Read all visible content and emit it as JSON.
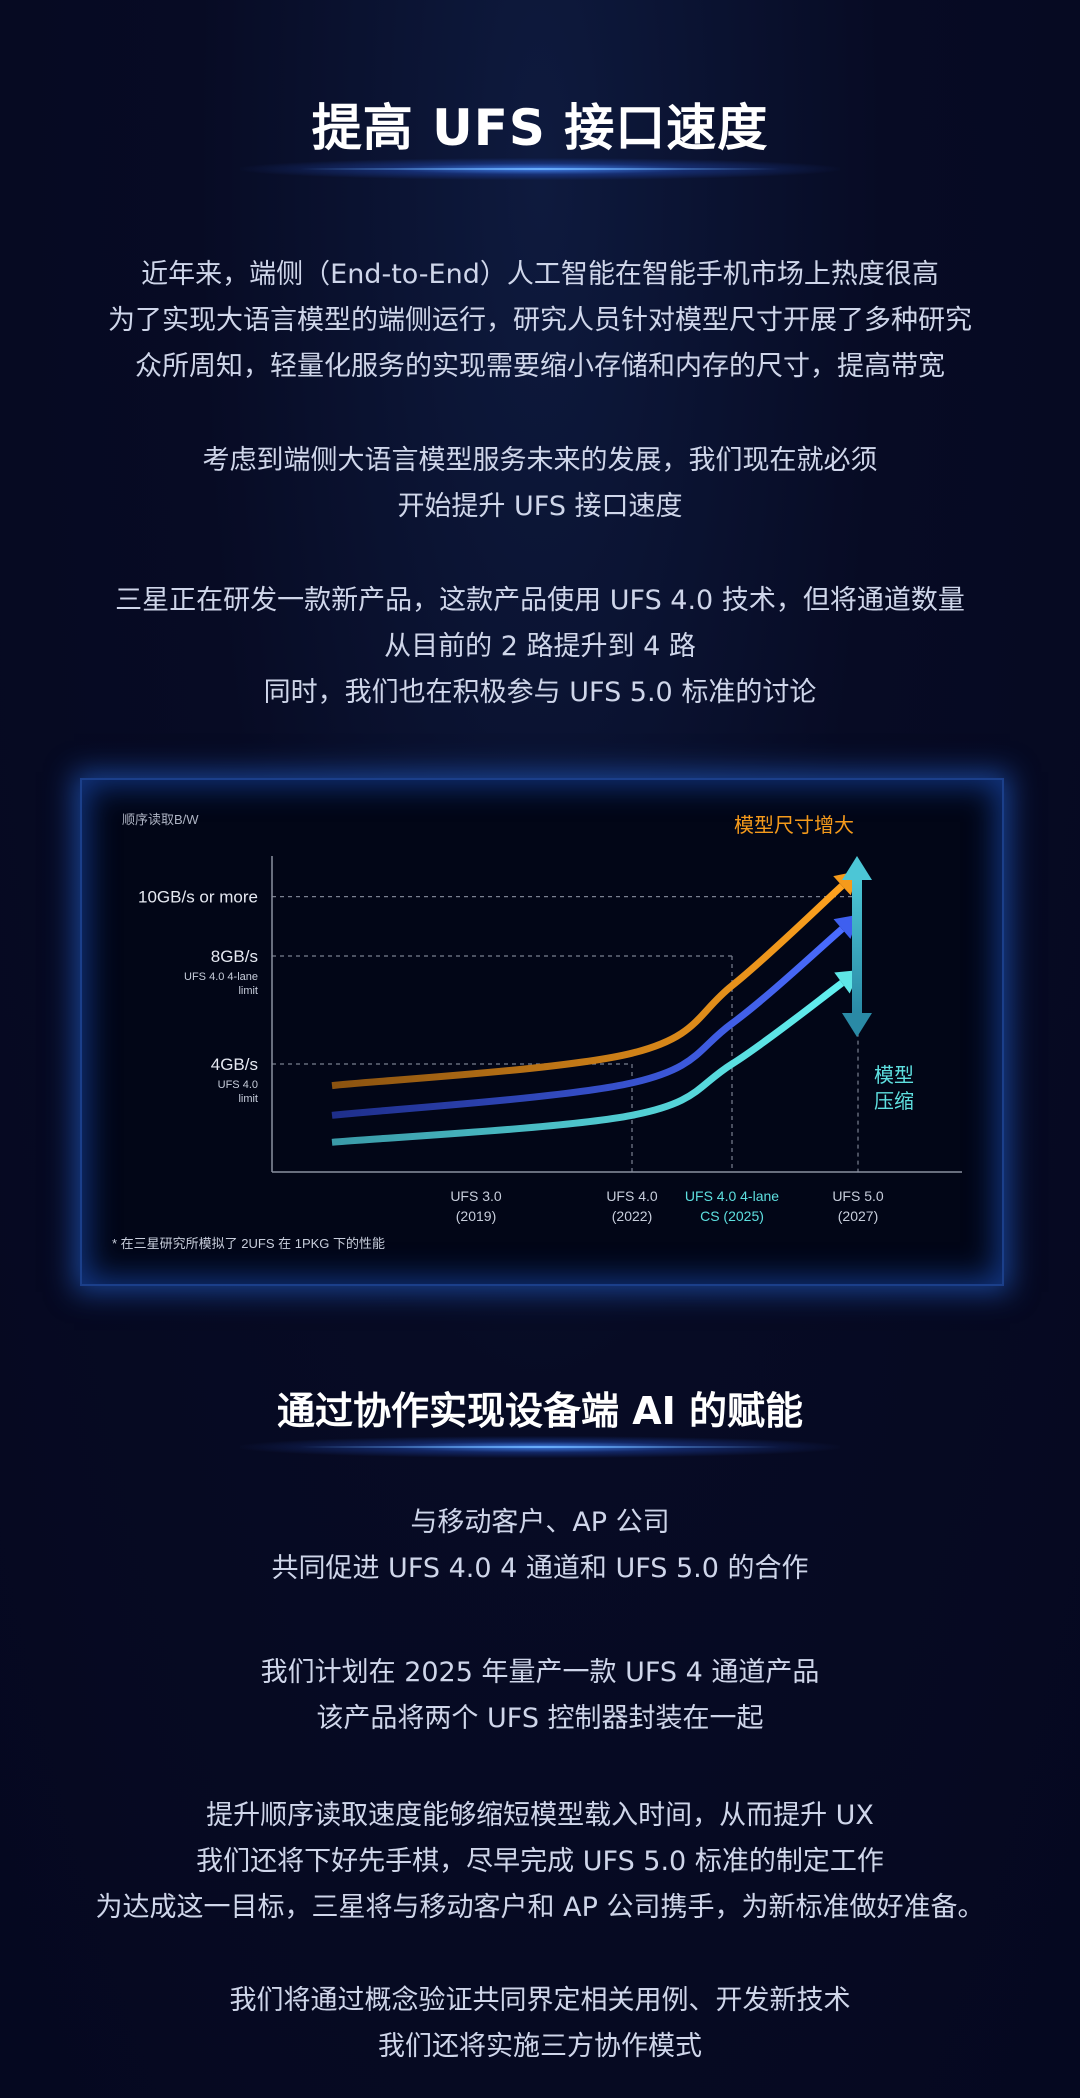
{
  "section1": {
    "title": "提高 UFS 接口速度",
    "paragraphs": [
      [
        "近年来，端侧（End-to-End）人工智能在智能手机市场上热度很高",
        "为了实现大语言模型的端侧运行，研究人员针对模型尺寸开展了多种研究",
        "众所周知，轻量化服务的实现需要缩小存储和内存的尺寸，提高带宽"
      ],
      [
        "考虑到端侧大语言模型服务未来的发展，我们现在就必须",
        "开始提升 UFS 接口速度"
      ],
      [
        "三星正在研发一款新产品，这款产品使用 UFS 4.0 技术，但将通道数量",
        "从目前的 2 路提升到 4 路",
        "同时，我们也在积极参与 UFS 5.0 标准的讨论"
      ]
    ]
  },
  "chart_data": {
    "type": "line",
    "ylabel": "顺序读取B/W",
    "y_ticks": [
      {
        "label": "10GB/s or more",
        "note": ""
      },
      {
        "label": "8GB/s",
        "note": "UFS 4.0 4-lane limit"
      },
      {
        "label": "4GB/s",
        "note": "UFS 4.0 limit"
      }
    ],
    "x_ticks": [
      {
        "label": "UFS 3.0",
        "sub": "(2019)",
        "color": "#c8cedc"
      },
      {
        "label": "UFS 4.0",
        "sub": "(2022)",
        "color": "#c8cedc"
      },
      {
        "label": "UFS 4.0 4-lane",
        "sub": "CS (2025)",
        "color": "#5ee0e0"
      },
      {
        "label": "UFS 5.0",
        "sub": "(2027)",
        "color": "#c8cedc"
      }
    ],
    "ylim": [
      0,
      12
    ],
    "series": [
      {
        "color": "#f59a1b",
        "values": [
          3.2,
          4.4,
          6.9,
          10.6
        ]
      },
      {
        "color": "#3e5ff0",
        "values": [
          2.1,
          3.3,
          5.5,
          9.0
        ]
      },
      {
        "color": "#5ee6e6",
        "values": [
          1.1,
          2.1,
          4.0,
          7.0
        ]
      }
    ],
    "annotations": [
      {
        "text": "模型尺寸增大",
        "color": "#f59a1b"
      },
      {
        "text": "模型",
        "color": "#5ee0e0"
      },
      {
        "text": "压缩",
        "color": "#5ee0e0"
      }
    ],
    "footnote": "* 在三星研究所模拟了 2UFS 在 1PKG 下的性能"
  },
  "section2": {
    "title": "通过协作实现设备端 AI 的赋能",
    "paragraphs": [
      [
        "与移动客户、AP 公司",
        "共同促进 UFS 4.0 4 通道和 UFS 5.0 的合作"
      ],
      [
        "我们计划在 2025 年量产一款 UFS 4 通道产品",
        "该产品将两个 UFS 控制器封装在一起"
      ],
      [
        "提升顺序读取速度能够缩短模型载入时间，从而提升 UX",
        "我们还将下好先手棋，尽早完成 UFS 5.0 标准的制定工作",
        "为达成这一目标，三星将与移动客户和 AP 公司携手，为新标准做好准备。"
      ],
      [
        "我们将通过概念验证共同界定相关用例、开发新技术",
        "我们还将实施三方协作模式"
      ]
    ]
  }
}
